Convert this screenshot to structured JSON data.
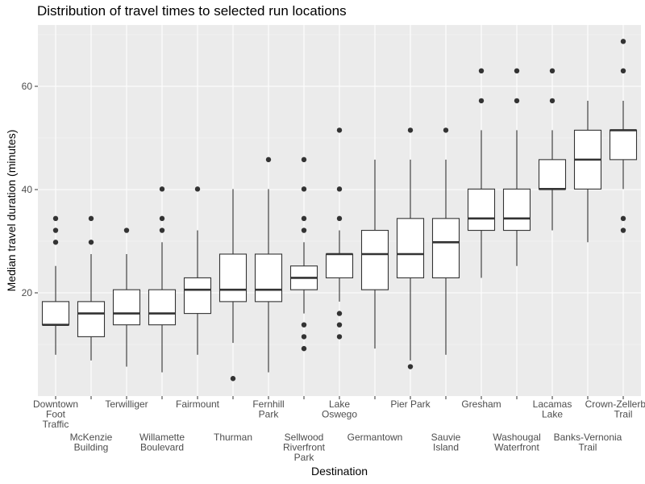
{
  "chart_data": {
    "type": "box",
    "title": "Distribution of travel times to selected run locations",
    "xlabel": "Destination",
    "ylabel": "Median travel duration (minutes)",
    "ylim": [
      0,
      72
    ],
    "yticks": [
      20,
      40,
      60
    ],
    "grid": true,
    "categories": [
      {
        "lines": [
          "Downtown",
          "Foot",
          "Traffic"
        ],
        "row": 1
      },
      {
        "lines": [
          "McKenzie",
          "Building"
        ],
        "row": 2
      },
      {
        "lines": [
          "Terwilliger"
        ],
        "row": 1
      },
      {
        "lines": [
          "Willamette",
          "Boulevard"
        ],
        "row": 2
      },
      {
        "lines": [
          "Fairmount"
        ],
        "row": 1
      },
      {
        "lines": [
          "Thurman"
        ],
        "row": 2
      },
      {
        "lines": [
          "Fernhill",
          "Park"
        ],
        "row": 1
      },
      {
        "lines": [
          "Sellwood",
          "Riverfront",
          "Park"
        ],
        "row": 2
      },
      {
        "lines": [
          "Lake",
          "Oswego"
        ],
        "row": 1
      },
      {
        "lines": [
          "Germantown"
        ],
        "row": 2
      },
      {
        "lines": [
          "Pier Park"
        ],
        "row": 1
      },
      {
        "lines": [
          "Sauvie",
          "Island"
        ],
        "row": 2
      },
      {
        "lines": [
          "Gresham"
        ],
        "row": 1
      },
      {
        "lines": [
          "Washougal",
          "Waterfront"
        ],
        "row": 2
      },
      {
        "lines": [
          "Lacamas",
          "Lake"
        ],
        "row": 1
      },
      {
        "lines": [
          "Banks-Vernonia",
          "Trail"
        ],
        "row": 2
      },
      {
        "lines": [
          "Crown-Zellerbach",
          "Trail"
        ],
        "row": 1
      }
    ],
    "boxes": [
      {
        "low": 8.0,
        "q1": 13.8,
        "median": 13.8,
        "q3": 18.3,
        "high": 25.2,
        "outliers": [
          29.8,
          32.1,
          34.4
        ]
      },
      {
        "low": 6.9,
        "q1": 11.5,
        "median": 16.0,
        "q3": 18.3,
        "high": 27.5,
        "outliers": [
          29.8,
          34.4
        ]
      },
      {
        "low": 5.7,
        "q1": 13.8,
        "median": 16.0,
        "q3": 20.6,
        "high": 27.5,
        "outliers": [
          32.1
        ]
      },
      {
        "low": 4.6,
        "q1": 13.8,
        "median": 16.0,
        "q3": 20.6,
        "high": 29.8,
        "outliers": [
          32.1,
          34.4,
          40.1
        ]
      },
      {
        "low": 8.0,
        "q1": 16.0,
        "median": 20.6,
        "q3": 22.9,
        "high": 32.1,
        "outliers": [
          40.1
        ]
      },
      {
        "low": 10.3,
        "q1": 18.3,
        "median": 20.6,
        "q3": 27.5,
        "high": 40.1,
        "outliers": [
          3.4
        ]
      },
      {
        "low": 4.6,
        "q1": 18.3,
        "median": 20.6,
        "q3": 27.5,
        "high": 40.1,
        "outliers": [
          45.8
        ]
      },
      {
        "low": 16.0,
        "q1": 20.6,
        "median": 22.9,
        "q3": 25.2,
        "high": 29.8,
        "outliers": [
          9.2,
          11.5,
          13.8,
          32.1,
          34.4,
          40.1,
          45.8
        ]
      },
      {
        "low": 18.3,
        "q1": 22.9,
        "median": 27.5,
        "q3": 27.5,
        "high": 32.1,
        "outliers": [
          11.5,
          13.8,
          16.0,
          34.4,
          40.1,
          51.5
        ]
      },
      {
        "low": 9.2,
        "q1": 20.6,
        "median": 27.5,
        "q3": 32.1,
        "high": 45.8,
        "outliers": []
      },
      {
        "low": 6.9,
        "q1": 22.9,
        "median": 27.5,
        "q3": 34.4,
        "high": 45.8,
        "outliers": [
          5.7,
          51.5
        ]
      },
      {
        "low": 8.0,
        "q1": 22.9,
        "median": 29.8,
        "q3": 34.4,
        "high": 45.8,
        "outliers": [
          51.5
        ]
      },
      {
        "low": 22.9,
        "q1": 32.1,
        "median": 34.4,
        "q3": 40.1,
        "high": 51.5,
        "outliers": [
          57.2,
          63.0
        ]
      },
      {
        "low": 25.2,
        "q1": 32.1,
        "median": 34.4,
        "q3": 40.1,
        "high": 51.5,
        "outliers": [
          57.2,
          63.0
        ]
      },
      {
        "low": 32.1,
        "q1": 40.1,
        "median": 40.1,
        "q3": 45.8,
        "high": 51.5,
        "outliers": [
          57.2,
          63.0
        ]
      },
      {
        "low": 29.8,
        "q1": 40.1,
        "median": 45.8,
        "q3": 51.5,
        "high": 57.2,
        "outliers": []
      },
      {
        "low": 40.1,
        "q1": 45.8,
        "median": 51.5,
        "q3": 51.5,
        "high": 57.2,
        "outliers": [
          32.1,
          34.4,
          63.0,
          68.7
        ]
      }
    ]
  }
}
